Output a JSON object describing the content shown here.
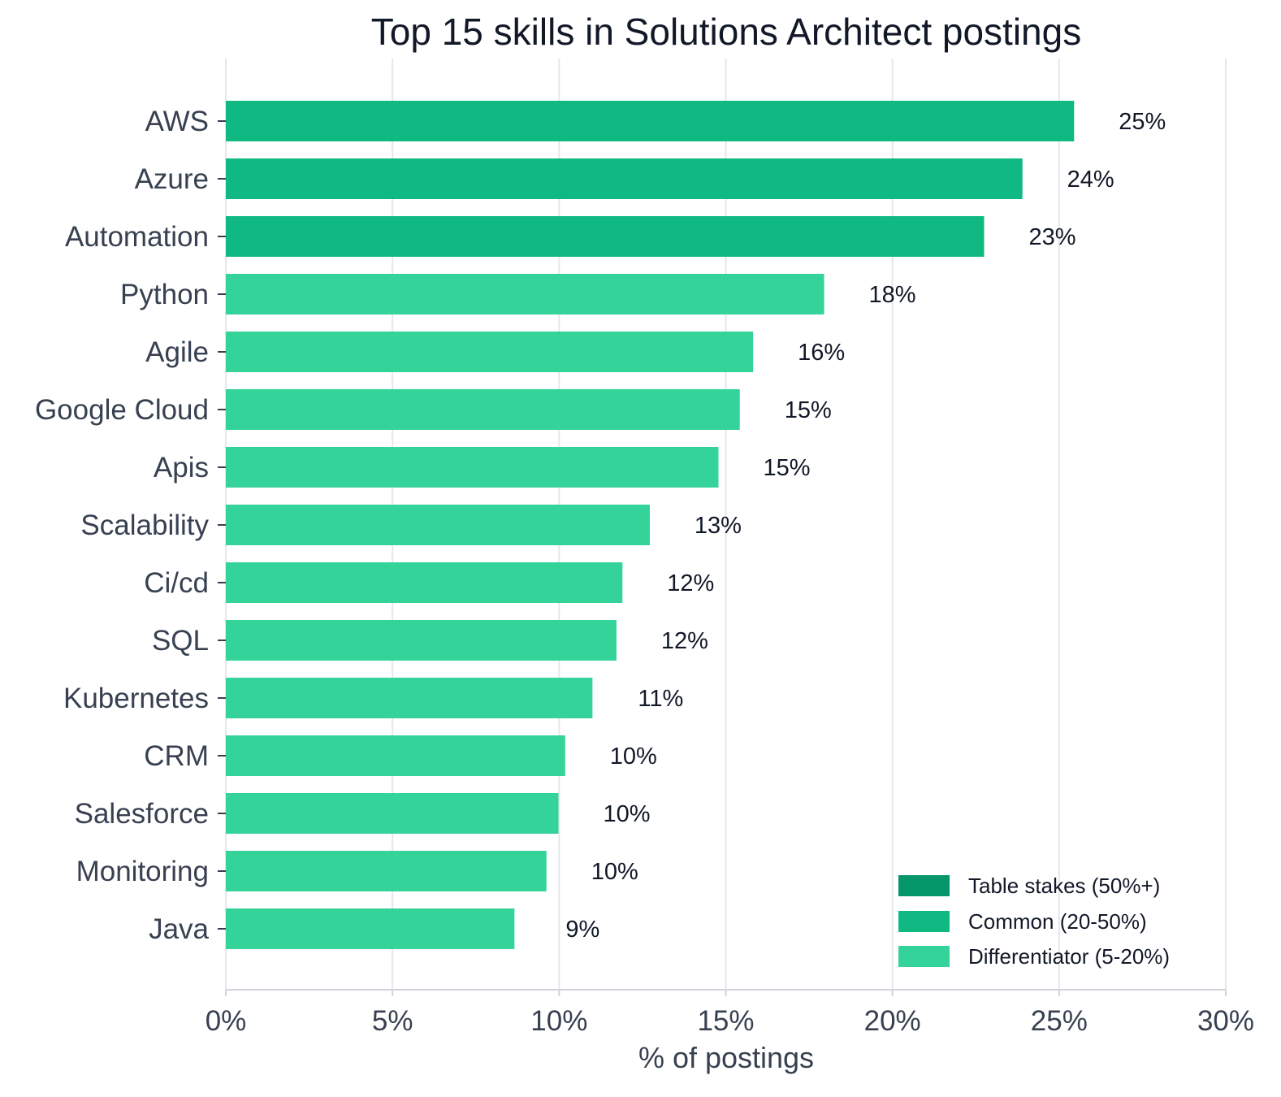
{
  "chart_data": {
    "type": "bar",
    "orientation": "horizontal",
    "title": "Top 15 skills in Solutions Architect postings",
    "xlabel": "% of postings",
    "ylabel": "",
    "xlim": [
      0,
      30
    ],
    "x_ticks": [
      0,
      5,
      10,
      15,
      20,
      25,
      30
    ],
    "x_tick_labels": [
      "0%",
      "5%",
      "10%",
      "15%",
      "20%",
      "25%",
      "30%"
    ],
    "grid": "vertical",
    "legend_position": "bottom-right",
    "categories": [
      "AWS",
      "Azure",
      "Automation",
      "Python",
      "Agile",
      "Google Cloud",
      "Apis",
      "Scalability",
      "Ci/cd",
      "SQL",
      "Kubernetes",
      "CRM",
      "Salesforce",
      "Monitoring",
      "Java"
    ],
    "values": [
      25.45,
      23.9,
      22.75,
      17.95,
      15.82,
      15.42,
      14.78,
      12.72,
      11.9,
      11.72,
      11.0,
      10.18,
      9.98,
      9.62,
      8.66
    ],
    "value_labels": [
      "25%",
      "24%",
      "23%",
      "18%",
      "16%",
      "15%",
      "15%",
      "13%",
      "12%",
      "12%",
      "11%",
      "10%",
      "10%",
      "10%",
      "9%"
    ],
    "tiers": [
      "common",
      "common",
      "common",
      "differentiator",
      "differentiator",
      "differentiator",
      "differentiator",
      "differentiator",
      "differentiator",
      "differentiator",
      "differentiator",
      "differentiator",
      "differentiator",
      "differentiator",
      "differentiator"
    ],
    "legend": [
      {
        "key": "table_stakes",
        "label": "Table stakes (50%+)",
        "color": "#059669"
      },
      {
        "key": "common",
        "label": "Common (20-50%)",
        "color": "#10B981"
      },
      {
        "key": "differentiator",
        "label": "Differentiator (5-20%)",
        "color": "#34D399"
      }
    ],
    "colors": {
      "grid": "#E5E7EB",
      "axis": "#D1D5DB"
    }
  }
}
